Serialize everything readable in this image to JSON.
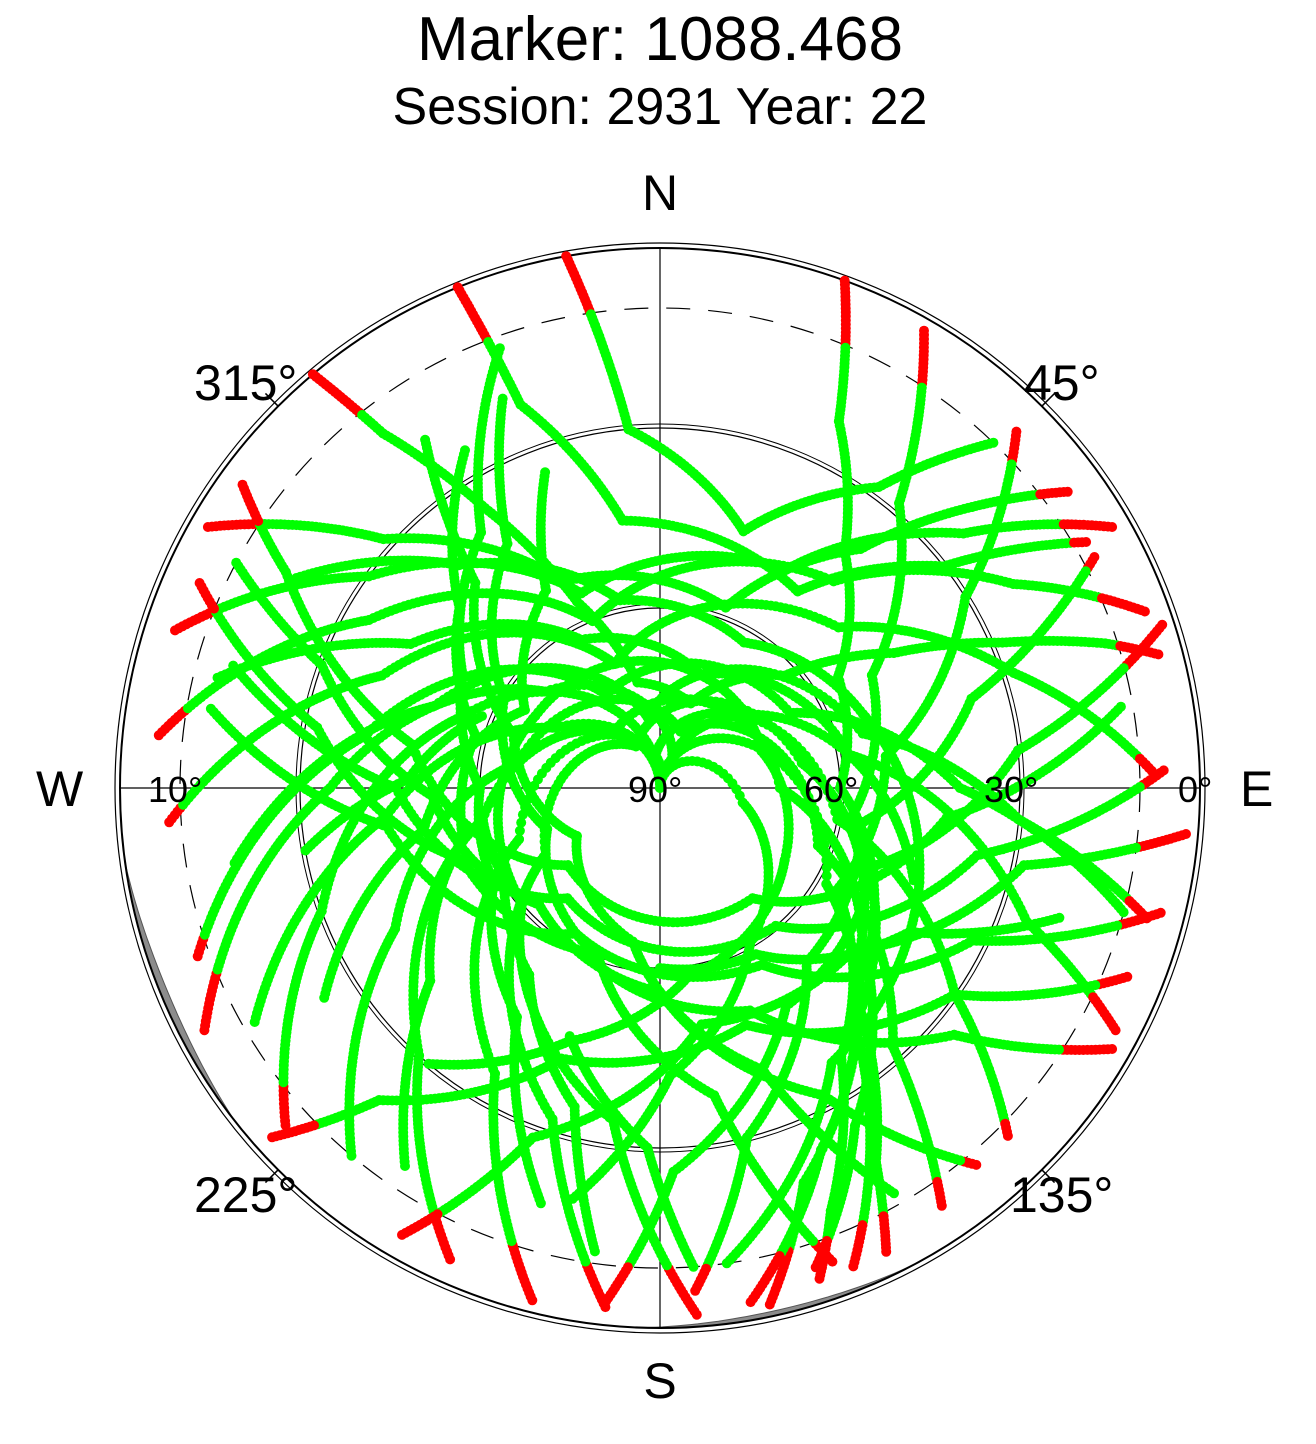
{
  "title": "Marker: 1088.468",
  "subtitle": "Session: 2931 Year: 22",
  "colors": {
    "tracked": "#00ff00",
    "low_elevation": "#ff0000",
    "grid": "#000000",
    "mask": "#8c8c8c",
    "background": "#ffffff"
  },
  "chart_data": {
    "type": "scatter",
    "projection": "polar-skyplot",
    "title": "Marker: 1088.468",
    "subtitle": "Session: 2931 Year: 22",
    "directions": [
      "N",
      "E",
      "S",
      "W"
    ],
    "azimuth_labels": [
      "45°",
      "135°",
      "225°",
      "315°"
    ],
    "elevation_labels": [
      "0°",
      "30°",
      "60°",
      "90°",
      "10°"
    ],
    "elevation_circles": [
      30,
      60
    ],
    "cutoff_elevation": 10,
    "elevation_range": [
      0,
      90
    ],
    "grid": true,
    "legend": "none",
    "series": [
      {
        "color": "#00ff00",
        "elevation_range": [
          10,
          90
        ]
      },
      {
        "color": "#ff0000",
        "elevation_range": [
          0,
          10
        ]
      }
    ],
    "tracks": [
      {
        "points": [
          [
            320,
            0
          ],
          [
            322,
            15
          ],
          [
            328,
            35
          ],
          [
            336,
            56
          ],
          [
            348,
            72
          ],
          [
            20,
            75
          ],
          [
            48,
            62
          ],
          [
            60,
            45
          ],
          [
            67,
            28
          ],
          [
            72,
            12
          ],
          [
            75,
            4
          ]
        ]
      },
      {
        "points": [
          [
            338,
            0
          ],
          [
            340,
            22
          ],
          [
            352,
            45
          ],
          [
            35,
            50
          ],
          [
            52,
            30
          ],
          [
            60,
            8
          ]
        ]
      },
      {
        "points": [
          [
            350,
            0
          ],
          [
            355,
            30
          ],
          [
            18,
            45
          ],
          [
            36,
            28
          ],
          [
            44,
            10
          ]
        ]
      },
      {
        "points": [
          [
            300,
            3
          ],
          [
            312,
            28
          ],
          [
            335,
            52
          ],
          [
            20,
            58
          ],
          [
            40,
            38
          ],
          [
            48,
            20
          ],
          [
            54,
            6
          ]
        ]
      },
      {
        "points": [
          [
            288,
            5
          ],
          [
            306,
            30
          ],
          [
            338,
            55
          ],
          [
            30,
            48
          ],
          [
            50,
            24
          ],
          [
            60,
            3
          ]
        ]
      },
      {
        "points": [
          [
            276,
            6
          ],
          [
            300,
            34
          ],
          [
            338,
            60
          ],
          [
            40,
            45
          ],
          [
            60,
            22
          ],
          [
            70,
            4
          ]
        ]
      },
      {
        "points": [
          [
            266,
            8
          ],
          [
            292,
            40
          ],
          [
            340,
            68
          ],
          [
            48,
            50
          ],
          [
            72,
            28
          ],
          [
            88,
            8
          ]
        ]
      },
      {
        "points": [
          [
            260,
            18
          ],
          [
            290,
            50
          ],
          [
            350,
            78
          ],
          [
            75,
            55
          ],
          [
            95,
            30
          ],
          [
            105,
            6
          ]
        ]
      },
      {
        "points": [
          [
            250,
            8
          ],
          [
            280,
            40
          ],
          [
            330,
            72
          ],
          [
            60,
            65
          ],
          [
            90,
            40
          ],
          [
            105,
            10
          ]
        ]
      },
      {
        "points": [
          [
            242,
            4
          ],
          [
            270,
            35
          ],
          [
            310,
            65
          ],
          [
            20,
            84
          ],
          [
            80,
            58
          ],
          [
            110,
            25
          ],
          [
            118,
            4
          ]
        ]
      },
      {
        "points": [
          [
            228,
            6
          ],
          [
            250,
            30
          ],
          [
            290,
            55
          ],
          [
            350,
            85
          ],
          [
            100,
            60
          ],
          [
            125,
            30
          ],
          [
            135,
            8
          ]
        ]
      },
      {
        "points": [
          [
            220,
            10
          ],
          [
            242,
            40
          ],
          [
            280,
            66
          ],
          [
            20,
            80
          ],
          [
            110,
            62
          ],
          [
            138,
            32
          ],
          [
            146,
            6
          ]
        ]
      },
      {
        "points": [
          [
            204,
            4
          ],
          [
            222,
            30
          ],
          [
            260,
            60
          ],
          [
            320,
            78
          ],
          [
            90,
            70
          ],
          [
            140,
            40
          ],
          [
            158,
            4
          ]
        ]
      },
      {
        "points": [
          [
            194,
            2
          ],
          [
            210,
            35
          ],
          [
            250,
            65
          ],
          [
            10,
            88
          ],
          [
            120,
            58
          ],
          [
            160,
            20
          ],
          [
            168,
            2
          ]
        ]
      },
      {
        "points": [
          [
            186,
            3
          ],
          [
            198,
            32
          ],
          [
            240,
            68
          ],
          [
            330,
            82
          ],
          [
            80,
            66
          ],
          [
            132,
            46
          ],
          [
            156,
            24
          ],
          [
            170,
            3
          ]
        ]
      },
      {
        "points": [
          [
            176,
            2
          ],
          [
            188,
            34
          ],
          [
            230,
            60
          ],
          [
            300,
            66
          ],
          [
            20,
            70
          ],
          [
            80,
            58
          ],
          [
            110,
            45
          ]
        ]
      },
      {
        "points": [
          [
            20,
            0
          ],
          [
            26,
            22
          ],
          [
            38,
            40
          ],
          [
            58,
            55
          ],
          [
            90,
            60
          ],
          [
            130,
            45
          ],
          [
            150,
            25
          ],
          [
            162,
            6
          ]
        ]
      },
      {
        "points": [
          [
            30,
            2
          ],
          [
            40,
            28
          ],
          [
            62,
            50
          ],
          [
            100,
            58
          ],
          [
            138,
            40
          ],
          [
            150,
            18
          ],
          [
            154,
            4
          ]
        ]
      },
      {
        "points": [
          [
            45,
            6
          ],
          [
            58,
            30
          ],
          [
            82,
            52
          ],
          [
            120,
            56
          ],
          [
            146,
            36
          ],
          [
            158,
            14
          ],
          [
            162,
            4
          ]
        ]
      },
      {
        "points": [
          [
            62,
            8
          ],
          [
            74,
            36
          ],
          [
            100,
            56
          ],
          [
            140,
            52
          ],
          [
            166,
            30
          ],
          [
            176,
            6
          ]
        ]
      },
      {
        "points": [
          [
            72,
            2
          ],
          [
            84,
            30
          ],
          [
            110,
            52
          ],
          [
            150,
            48
          ],
          [
            178,
            26
          ],
          [
            186,
            4
          ]
        ]
      },
      {
        "points": [
          [
            95,
            2
          ],
          [
            102,
            28
          ],
          [
            130,
            48
          ],
          [
            170,
            50
          ],
          [
            200,
            28
          ],
          [
            210,
            4
          ]
        ]
      },
      {
        "points": [
          [
            112,
            6
          ],
          [
            125,
            30
          ],
          [
            160,
            48
          ],
          [
            200,
            42
          ],
          [
            222,
            20
          ],
          [
            228,
            3
          ]
        ]
      },
      {
        "points": [
          [
            300,
            20
          ],
          [
            318,
            40
          ],
          [
            348,
            58
          ],
          [
            30,
            62
          ],
          [
            70,
            54
          ],
          [
            110,
            44
          ],
          [
            148,
            36
          ],
          [
            172,
            10
          ]
        ]
      },
      {
        "points": [
          [
            284,
            14
          ],
          [
            300,
            42
          ],
          [
            332,
            62
          ],
          [
            20,
            70
          ],
          [
            70,
            72
          ],
          [
            120,
            66
          ],
          [
            172,
            58
          ],
          [
            200,
            45
          ],
          [
            220,
            30
          ]
        ]
      },
      {
        "points": [
          [
            240,
            12
          ],
          [
            264,
            44
          ],
          [
            300,
            70
          ],
          [
            0,
            90
          ],
          [
            100,
            76
          ],
          [
            150,
            60
          ],
          [
            178,
            42
          ],
          [
            192,
            20
          ]
        ]
      },
      {
        "points": [
          [
            196,
            18
          ],
          [
            212,
            45
          ],
          [
            240,
            58
          ],
          [
            270,
            60
          ],
          [
            300,
            52
          ],
          [
            325,
            38
          ],
          [
            340,
            12
          ]
        ]
      },
      {
        "points": [
          [
            214,
            14
          ],
          [
            230,
            40
          ],
          [
            255,
            56
          ],
          [
            286,
            58
          ],
          [
            312,
            45
          ],
          [
            330,
            25
          ]
        ]
      },
      {
        "points": [
          [
            160,
            6
          ],
          [
            170,
            38
          ],
          [
            200,
            60
          ],
          [
            250,
            70
          ],
          [
            300,
            60
          ],
          [
            328,
            42
          ],
          [
            338,
            20
          ]
        ]
      },
      {
        "points": [
          [
            150,
            12
          ],
          [
            160,
            40
          ],
          [
            190,
            64
          ],
          [
            240,
            74
          ],
          [
            290,
            64
          ],
          [
            318,
            44
          ],
          [
            326,
            20
          ]
        ]
      },
      {
        "points": [
          [
            140,
            8
          ],
          [
            152,
            32
          ],
          [
            180,
            56
          ],
          [
            226,
            62
          ],
          [
            268,
            52
          ],
          [
            290,
            30
          ],
          [
            298,
            10
          ]
        ]
      },
      {
        "points": [
          [
            120,
            3
          ],
          [
            130,
            26
          ],
          [
            158,
            50
          ],
          [
            205,
            60
          ],
          [
            250,
            55
          ],
          [
            280,
            32
          ],
          [
            294,
            6
          ]
        ]
      },
      {
        "points": [
          [
            104,
            4
          ],
          [
            116,
            32
          ],
          [
            150,
            56
          ],
          [
            210,
            62
          ],
          [
            262,
            44
          ],
          [
            280,
            14
          ]
        ]
      },
      {
        "points": [
          [
            88,
            6
          ],
          [
            102,
            36
          ],
          [
            140,
            60
          ],
          [
            220,
            66
          ],
          [
            270,
            46
          ],
          [
            286,
            16
          ]
        ]
      },
      {
        "points": [
          [
            80,
            12
          ],
          [
            96,
            42
          ],
          [
            140,
            66
          ],
          [
            230,
            70
          ],
          [
            280,
            48
          ],
          [
            300,
            18
          ],
          [
            306,
            4
          ]
        ]
      },
      {
        "points": [
          [
            238,
            24
          ],
          [
            260,
            50
          ],
          [
            300,
            64
          ],
          [
            330,
            52
          ],
          [
            340,
            34
          ]
        ]
      },
      {
        "points": [
          [
            188,
            12
          ],
          [
            195,
            35
          ],
          [
            215,
            52
          ],
          [
            240,
            60
          ],
          [
            262,
            60
          ]
        ]
      },
      {
        "points": [
          [
            176,
            10
          ],
          [
            182,
            30
          ],
          [
            200,
            46
          ]
        ]
      },
      {
        "points": [
          [
            260,
            30
          ],
          [
            272,
            48
          ],
          [
            292,
            58
          ]
        ]
      },
      {
        "points": [
          [
            108,
            20
          ],
          [
            120,
            42
          ],
          [
            150,
            58
          ],
          [
            180,
            60
          ]
        ]
      }
    ]
  }
}
